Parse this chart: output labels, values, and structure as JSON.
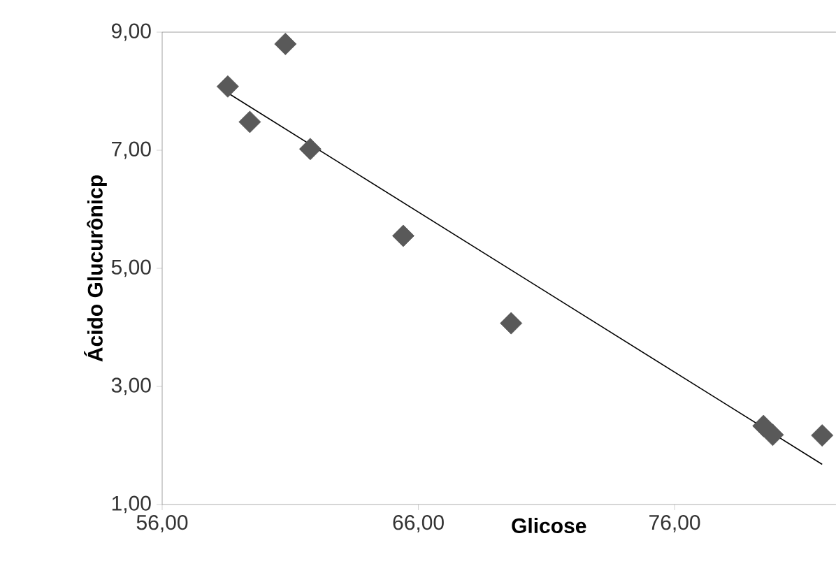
{
  "chart_data": {
    "type": "scatter",
    "xlabel": "Glicose",
    "ylabel": "Ácido Glucurônicp",
    "xlim": [
      56,
      82.3
    ],
    "ylim": [
      1,
      9
    ],
    "xticks": [
      {
        "value": 56,
        "label": "56,00"
      },
      {
        "value": 66,
        "label": "66,00"
      },
      {
        "value": 76,
        "label": "76,00"
      }
    ],
    "yticks": [
      {
        "value": 1,
        "label": "1,00"
      },
      {
        "value": 3,
        "label": "3,00"
      },
      {
        "value": 5,
        "label": "5,00"
      },
      {
        "value": 7,
        "label": "7,00"
      },
      {
        "value": 9,
        "label": "9,00"
      }
    ],
    "grid": false,
    "series": [
      {
        "marker": "diamond",
        "color": "#595959",
        "x": [
          58.56,
          59.42,
          60.81,
          61.78,
          65.41,
          69.62,
          79.47,
          79.83,
          81.76
        ],
        "values": [
          8.08,
          7.48,
          8.8,
          7.02,
          5.55,
          4.07,
          2.33,
          2.18,
          2.17
        ]
      },
      {
        "type": "line",
        "marker": "none",
        "line_style": "solid",
        "color": "#000000",
        "x": [
          58.56,
          81.76
        ],
        "values": [
          7.97,
          1.68
        ]
      }
    ]
  }
}
